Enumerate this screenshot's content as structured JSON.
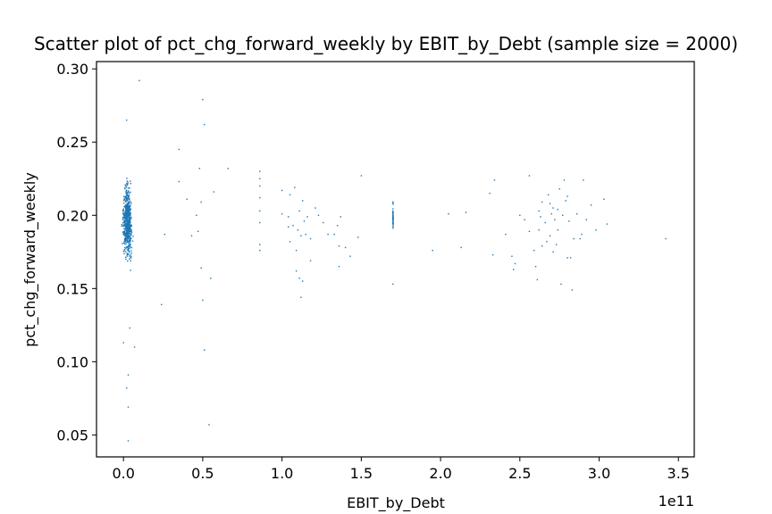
{
  "chart_data": {
    "type": "scatter",
    "title": "Scatter plot of pct_chg_forward_weekly by EBIT_by_Debt (sample size = 2000)",
    "xlabel": "EBIT_by_Debt",
    "ylabel": "pct_chg_forward_weekly",
    "x_scale_label": "1e11",
    "x_scale": 100000000000.0,
    "xlim": [
      -17000000000.0,
      360000000000.0
    ],
    "ylim": [
      0.035,
      0.305
    ],
    "x_ticks": [
      0,
      50000000000.0,
      100000000000.0,
      150000000000.0,
      200000000000.0,
      250000000000.0,
      300000000000.0,
      350000000000.0
    ],
    "x_tick_labels": [
      "0.0",
      "0.5",
      "1.0",
      "1.5",
      "2.0",
      "2.5",
      "3.0",
      "3.5"
    ],
    "y_ticks": [
      0.05,
      0.1,
      0.15,
      0.2,
      0.25,
      0.3
    ],
    "y_tick_labels": [
      "0.05",
      "0.10",
      "0.15",
      "0.20",
      "0.25",
      "0.30"
    ],
    "grid": false,
    "marker_color": "#1f77b4",
    "dense_clusters": [
      {
        "x_center": 2500000000.0,
        "x_spread": 5500000000.0,
        "y_center": 0.196,
        "y_spread": 0.045,
        "count": 600
      },
      {
        "x_center": 170000000000.0,
        "x_spread": 400000000.0,
        "y_center": 0.197,
        "y_spread": 0.018,
        "count": 45
      }
    ],
    "points": [
      [
        10000000000.0,
        0.292
      ],
      [
        50000000000.0,
        0.279
      ],
      [
        51000000000.0,
        0.262
      ],
      [
        35000000000.0,
        0.245
      ],
      [
        66000000000.0,
        0.232
      ],
      [
        48000000000.0,
        0.232
      ],
      [
        35000000000.0,
        0.223
      ],
      [
        57000000000.0,
        0.216
      ],
      [
        40000000000.0,
        0.211
      ],
      [
        49000000000.0,
        0.209
      ],
      [
        46000000000.0,
        0.2
      ],
      [
        47000000000.0,
        0.189
      ],
      [
        43000000000.0,
        0.186
      ],
      [
        26000000000.0,
        0.187
      ],
      [
        55000000000.0,
        0.157
      ],
      [
        49000000000.0,
        0.164
      ],
      [
        50000000000.0,
        0.142
      ],
      [
        24000000000.0,
        0.139
      ],
      [
        51000000000.0,
        0.108
      ],
      [
        54000000000.0,
        0.057
      ],
      [
        3000000000.0,
        0.046
      ],
      [
        3000000000.0,
        0.069
      ],
      [
        2000000000.0,
        0.082
      ],
      [
        3000000000.0,
        0.091
      ],
      [
        0.0,
        0.113
      ],
      [
        7000000000.0,
        0.11
      ],
      [
        4000000000.0,
        0.123
      ],
      [
        2000000000.0,
        0.265
      ],
      [
        86000000000.0,
        0.23
      ],
      [
        86000000000.0,
        0.225
      ],
      [
        86000000000.0,
        0.22
      ],
      [
        86000000000.0,
        0.212
      ],
      [
        86000000000.0,
        0.203
      ],
      [
        86000000000.0,
        0.195
      ],
      [
        86000000000.0,
        0.18
      ],
      [
        86000000000.0,
        0.176
      ],
      [
        100000000000.0,
        0.217
      ],
      [
        105000000000.0,
        0.214
      ],
      [
        108000000000.0,
        0.219
      ],
      [
        111000000000.0,
        0.203
      ],
      [
        113000000000.0,
        0.21
      ],
      [
        116000000000.0,
        0.199
      ],
      [
        100000000000.0,
        0.201
      ],
      [
        104000000000.0,
        0.199
      ],
      [
        104000000000.0,
        0.192
      ],
      [
        107000000000.0,
        0.193
      ],
      [
        105000000000.0,
        0.182
      ],
      [
        109000000000.0,
        0.176
      ],
      [
        110000000000.0,
        0.19
      ],
      [
        112000000000.0,
        0.186
      ],
      [
        114000000000.0,
        0.196
      ],
      [
        115000000000.0,
        0.187
      ],
      [
        118000000000.0,
        0.184
      ],
      [
        121000000000.0,
        0.205
      ],
      [
        123000000000.0,
        0.2
      ],
      [
        109000000000.0,
        0.162
      ],
      [
        111000000000.0,
        0.157
      ],
      [
        113000000000.0,
        0.155
      ],
      [
        112000000000.0,
        0.144
      ],
      [
        118000000000.0,
        0.169
      ],
      [
        126000000000.0,
        0.195
      ],
      [
        129000000000.0,
        0.187
      ],
      [
        133000000000.0,
        0.187
      ],
      [
        135000000000.0,
        0.193
      ],
      [
        137000000000.0,
        0.199
      ],
      [
        140000000000.0,
        0.178
      ],
      [
        136000000000.0,
        0.165
      ],
      [
        143000000000.0,
        0.172
      ],
      [
        148000000000.0,
        0.185
      ],
      [
        150000000000.0,
        0.227
      ],
      [
        136000000000.0,
        0.179
      ],
      [
        170000000000.0,
        0.153
      ],
      [
        195000000000.0,
        0.176
      ],
      [
        205000000000.0,
        0.201
      ],
      [
        213000000000.0,
        0.178
      ],
      [
        216000000000.0,
        0.202
      ],
      [
        231000000000.0,
        0.215
      ],
      [
        234000000000.0,
        0.224
      ],
      [
        233000000000.0,
        0.173
      ],
      [
        241000000000.0,
        0.187
      ],
      [
        245000000000.0,
        0.172
      ],
      [
        247000000000.0,
        0.167
      ],
      [
        246000000000.0,
        0.163
      ],
      [
        250000000000.0,
        0.2
      ],
      [
        253000000000.0,
        0.197
      ],
      [
        256000000000.0,
        0.227
      ],
      [
        256000000000.0,
        0.189
      ],
      [
        259000000000.0,
        0.176
      ],
      [
        260000000000.0,
        0.165
      ],
      [
        261000000000.0,
        0.156
      ],
      [
        262000000000.0,
        0.203
      ],
      [
        264000000000.0,
        0.209
      ],
      [
        262000000000.0,
        0.19
      ],
      [
        264000000000.0,
        0.179
      ],
      [
        266000000000.0,
        0.195
      ],
      [
        268000000000.0,
        0.214
      ],
      [
        269000000000.0,
        0.186
      ],
      [
        270000000000.0,
        0.201
      ],
      [
        271000000000.0,
        0.205
      ],
      [
        272000000000.0,
        0.197
      ],
      [
        273000000000.0,
        0.18
      ],
      [
        274000000000.0,
        0.19
      ],
      [
        275000000000.0,
        0.218
      ],
      [
        276000000000.0,
        0.153
      ],
      [
        277000000000.0,
        0.2
      ],
      [
        278000000000.0,
        0.224
      ],
      [
        279000000000.0,
        0.21
      ],
      [
        280000000000.0,
        0.171
      ],
      [
        281000000000.0,
        0.196
      ],
      [
        282000000000.0,
        0.171
      ],
      [
        283000000000.0,
        0.149
      ],
      [
        284000000000.0,
        0.184
      ],
      [
        286000000000.0,
        0.201
      ],
      [
        288000000000.0,
        0.184
      ],
      [
        290000000000.0,
        0.224
      ],
      [
        292000000000.0,
        0.197
      ],
      [
        295000000000.0,
        0.207
      ],
      [
        298000000000.0,
        0.19
      ],
      [
        303000000000.0,
        0.211
      ],
      [
        305000000000.0,
        0.194
      ],
      [
        342000000000.0,
        0.184
      ],
      [
        271000000000.0,
        0.175
      ],
      [
        267000000000.0,
        0.182
      ],
      [
        289000000000.0,
        0.187
      ],
      [
        263000000000.0,
        0.199
      ],
      [
        274000000000.0,
        0.204
      ],
      [
        269000000000.0,
        0.208
      ],
      [
        280000000000.0,
        0.213
      ]
    ]
  }
}
